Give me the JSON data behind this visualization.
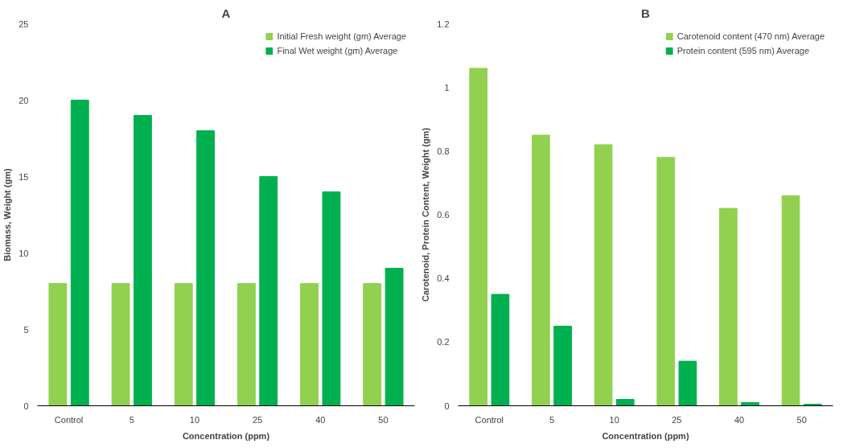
{
  "chart_data": [
    {
      "type": "bar",
      "title": "A",
      "xlabel": "Concentration (ppm)",
      "ylabel": "Biomass, Weight (gm)",
      "categories": [
        "Control",
        "5",
        "10",
        "25",
        "40",
        "50"
      ],
      "series": [
        {
          "name": "Initial Fresh weight (gm) Average",
          "color": "#92d050",
          "values": [
            8,
            8,
            8,
            8,
            8,
            8
          ]
        },
        {
          "name": "Final Wet weight (gm) Average",
          "color": "#00b050",
          "values": [
            20,
            19,
            18,
            15,
            14,
            9
          ]
        }
      ],
      "ylim": [
        0,
        25
      ],
      "yticks": [
        0,
        5,
        10,
        15,
        20,
        25
      ],
      "grid": false,
      "legend": "top right"
    },
    {
      "type": "bar",
      "title": "B",
      "xlabel": "Concentration (ppm)",
      "ylabel": "Carotenoid, Protein Content, Weight (gm)",
      "categories": [
        "Control",
        "5",
        "10",
        "25",
        "40",
        "50"
      ],
      "series": [
        {
          "name": "Carotenoid content (470 nm) Average",
          "color": "#92d050",
          "values": [
            1.06,
            0.85,
            0.82,
            0.78,
            0.62,
            0.66
          ]
        },
        {
          "name": "Protein content (595 nm) Average",
          "color": "#00b050",
          "values": [
            0.35,
            0.25,
            0.02,
            0.14,
            0.01,
            0.005
          ]
        }
      ],
      "ylim": [
        0,
        1.2
      ],
      "yticks": [
        0,
        0.2,
        0.4,
        0.6,
        0.8,
        1,
        1.2
      ],
      "grid": false,
      "legend": "top right"
    }
  ]
}
